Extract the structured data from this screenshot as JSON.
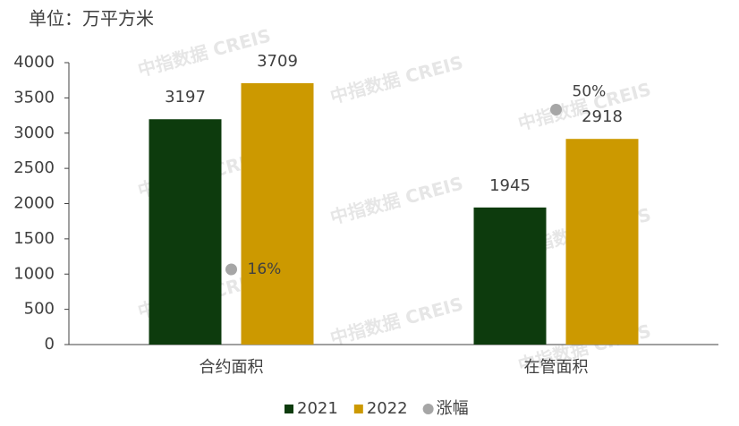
{
  "chart_data": {
    "type": "bar",
    "title": "单位：万平方米",
    "watermark": "中指数据 CREIS",
    "categories": [
      "合约面积",
      "在管面积"
    ],
    "series": [
      {
        "name": "2021",
        "type": "bar",
        "color": "#0d3b0d",
        "values": [
          3197,
          1945
        ]
      },
      {
        "name": "2022",
        "type": "bar",
        "color": "#cc9900",
        "values": [
          3709,
          2918
        ]
      },
      {
        "name": "涨幅",
        "type": "scatter",
        "axis": "y2",
        "color": "#a6a6a6",
        "values": [
          16,
          50
        ],
        "value_labels": [
          "16%",
          "50%"
        ]
      }
    ],
    "ylim": [
      0,
      4000
    ],
    "yticks": [
      0,
      500,
      1000,
      1500,
      2000,
      2500,
      3000,
      3500,
      4000
    ],
    "y2lim": [
      0,
      60
    ],
    "grid": false,
    "legend": "bottom"
  }
}
